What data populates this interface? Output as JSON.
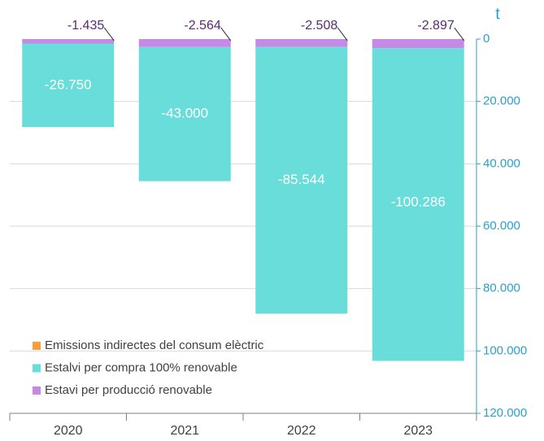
{
  "chart_data": {
    "type": "bar",
    "stacked": true,
    "y_label": "t",
    "categories": [
      "2020",
      "2021",
      "2022",
      "2023"
    ],
    "series": [
      {
        "name": "Emissions indirectes del consum elèctric",
        "color": "#f4a040",
        "values": [
          0,
          0,
          0,
          0
        ]
      },
      {
        "name": "Estalvi per compra 100% renovable",
        "color": "#68ddd9",
        "values": [
          -26750,
          -43000,
          -85544,
          -100286
        ],
        "value_labels": [
          "-26.750",
          "-43.000",
          "-85.544",
          "-100.286"
        ]
      },
      {
        "name": "Estavi per producció renovable",
        "color": "#c48ae6",
        "values": [
          -1435,
          -2564,
          -2508,
          -2897
        ],
        "value_labels": [
          "-1.435",
          "-2.564",
          "-2.508",
          "-2.897"
        ]
      }
    ],
    "ylim": [
      0,
      -120000
    ],
    "yticks": [
      0,
      {
        "value": -20000,
        "label": "20.000"
      },
      {
        "value": -40000,
        "label": "40.000"
      },
      {
        "value": -60000,
        "label": "60.000"
      },
      {
        "value": -80000,
        "label": "80.000"
      },
      {
        "value": -100000,
        "label": "100.000"
      },
      {
        "value": -120000,
        "label": "120.000"
      }
    ],
    "grid": true,
    "legend": "lower left"
  }
}
